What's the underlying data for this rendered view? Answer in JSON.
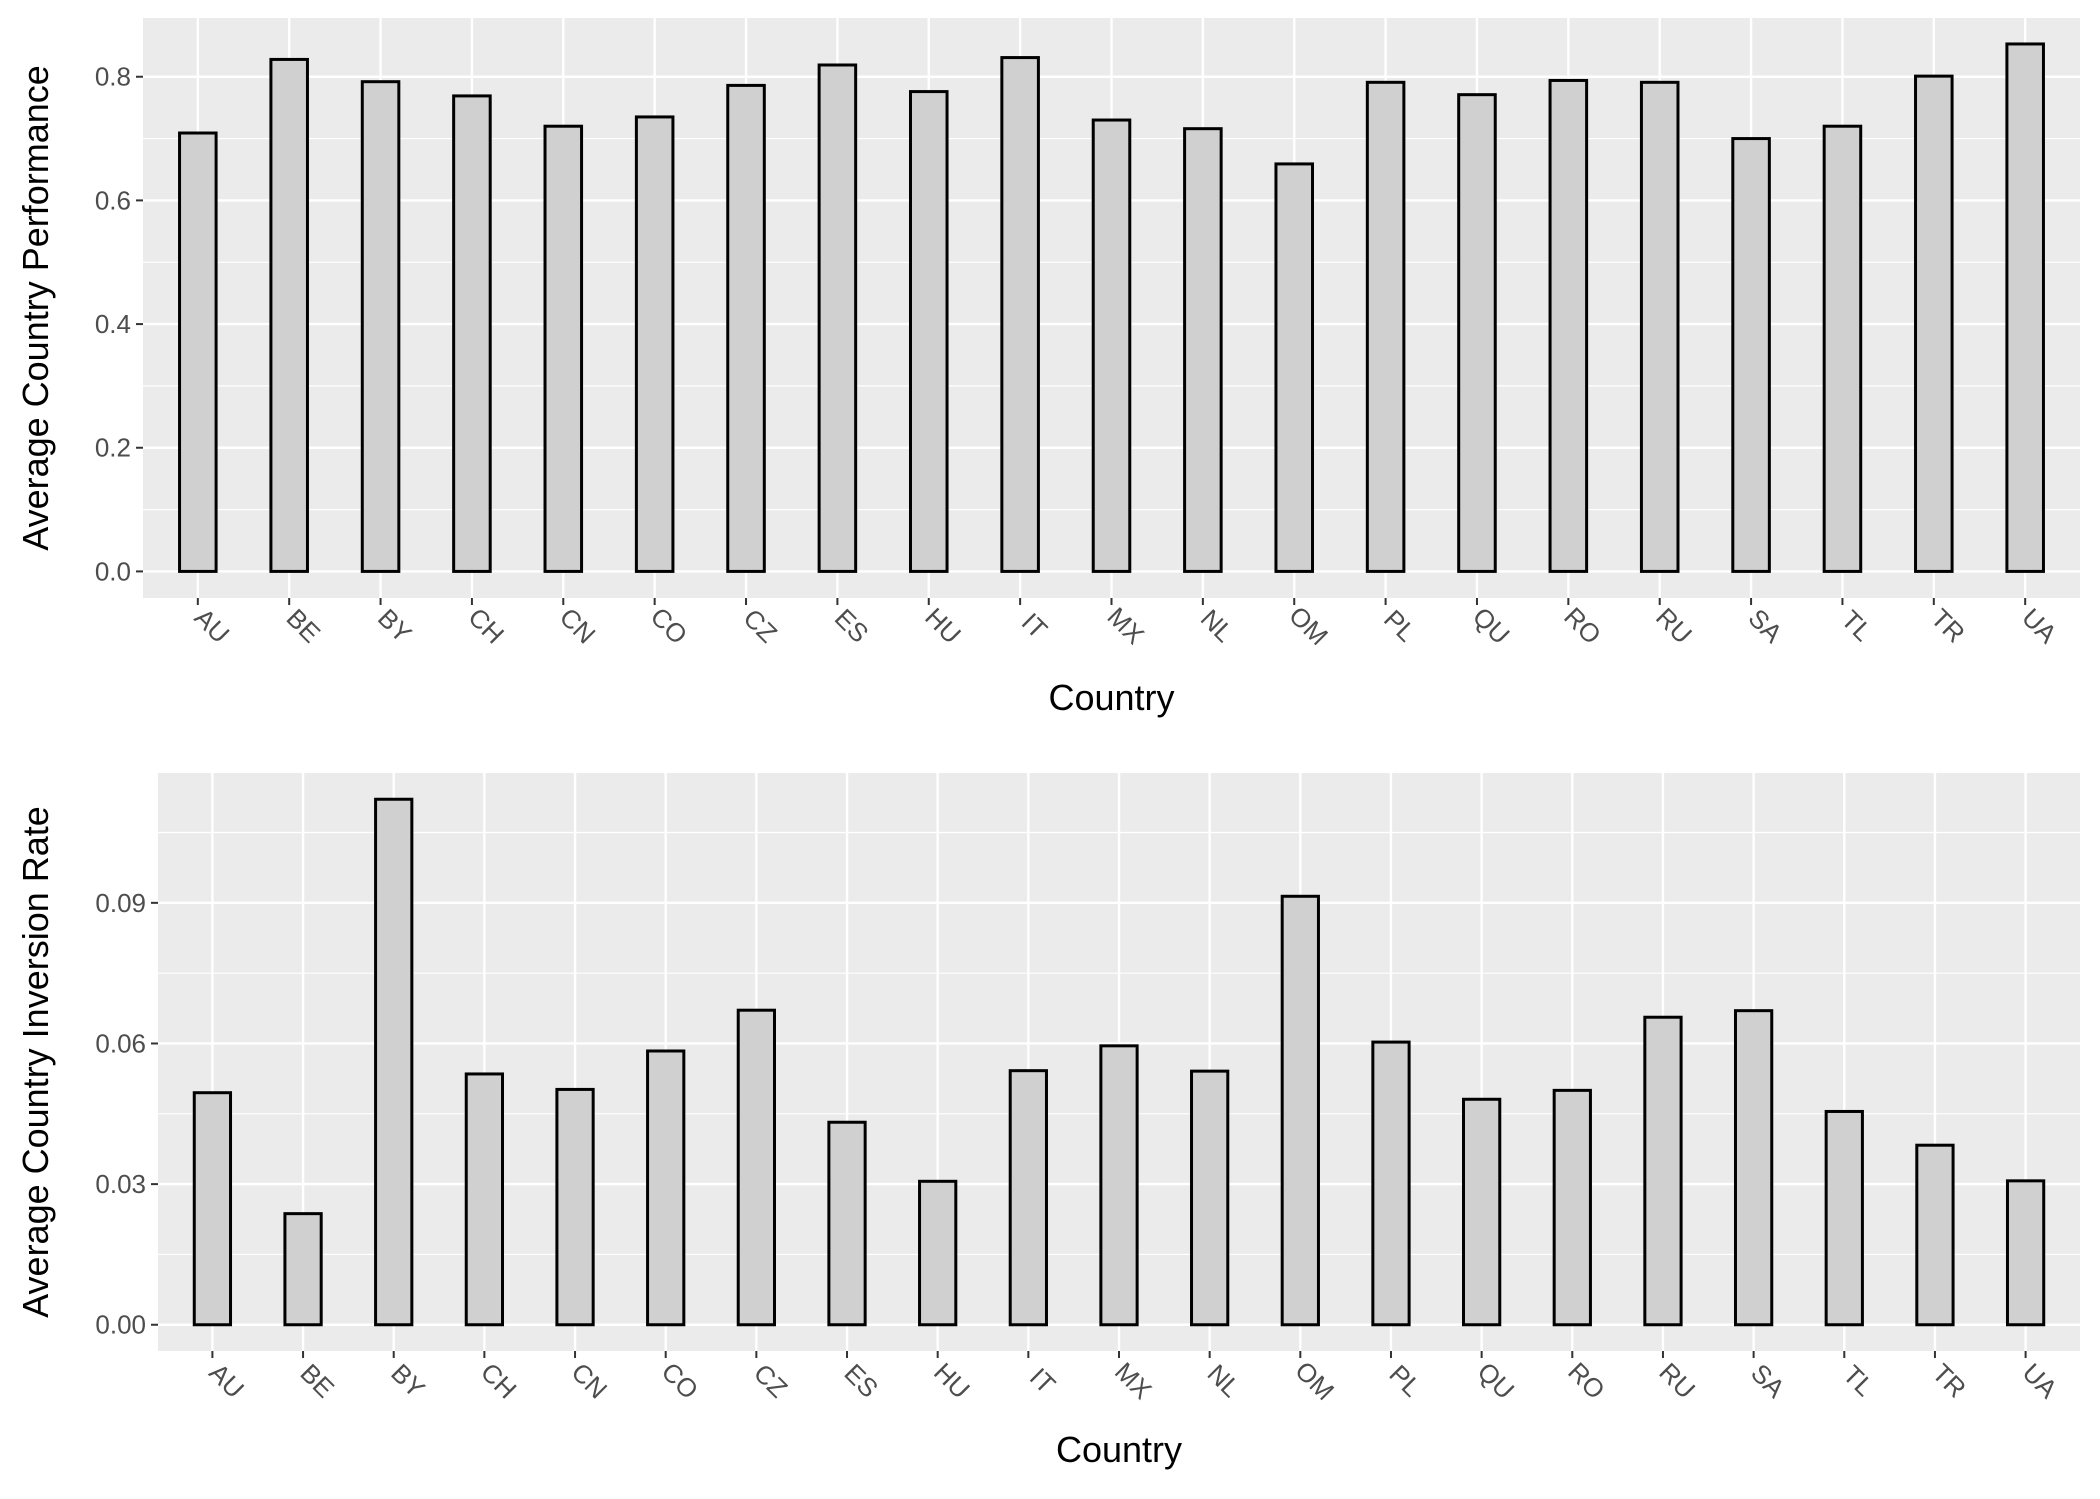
{
  "chart_data": [
    {
      "type": "bar",
      "categories": [
        "AU",
        "BE",
        "BY",
        "CH",
        "CN",
        "CO",
        "CZ",
        "ES",
        "HU",
        "IT",
        "MX",
        "NL",
        "OM",
        "PL",
        "QU",
        "RO",
        "RU",
        "SA",
        "TL",
        "TR",
        "UA"
      ],
      "values": [
        0.709,
        0.828,
        0.792,
        0.769,
        0.72,
        0.735,
        0.786,
        0.819,
        0.776,
        0.831,
        0.73,
        0.716,
        0.659,
        0.791,
        0.771,
        0.794,
        0.791,
        0.7,
        0.72,
        0.801,
        0.853
      ],
      "xlabel": "Country",
      "ylabel": "Average Country Performance",
      "ylim": [
        -0.043,
        0.895
      ],
      "yticks": [
        0.0,
        0.2,
        0.4,
        0.6,
        0.8
      ],
      "ytick_labels": [
        "0.0",
        "0.2",
        "0.4",
        "0.6",
        "0.8"
      ],
      "grid": true,
      "bar_fill": "#d0d0d0",
      "bar_stroke": "#000000",
      "panel_background": "#ebebeb"
    },
    {
      "type": "bar",
      "categories": [
        "AU",
        "BE",
        "BY",
        "CH",
        "CN",
        "CO",
        "CZ",
        "ES",
        "HU",
        "IT",
        "MX",
        "NL",
        "OM",
        "PL",
        "QU",
        "RO",
        "RU",
        "SA",
        "TL",
        "TR",
        "UA"
      ],
      "values": [
        0.0495,
        0.0237,
        0.1121,
        0.0535,
        0.0502,
        0.0584,
        0.0671,
        0.0432,
        0.0306,
        0.0542,
        0.0595,
        0.0541,
        0.0914,
        0.0603,
        0.0481,
        0.05,
        0.0656,
        0.067,
        0.0455,
        0.0383,
        0.0307
      ],
      "xlabel": "Country",
      "ylabel": "Average Country Inversion Rate",
      "ylim": [
        -0.0056,
        0.1177
      ],
      "yticks": [
        0.0,
        0.03,
        0.06,
        0.09
      ],
      "ytick_labels": [
        "0.00",
        "0.03",
        "0.06",
        "0.09"
      ],
      "grid": true,
      "bar_fill": "#d0d0d0",
      "bar_stroke": "#000000",
      "panel_background": "#ebebeb"
    }
  ]
}
